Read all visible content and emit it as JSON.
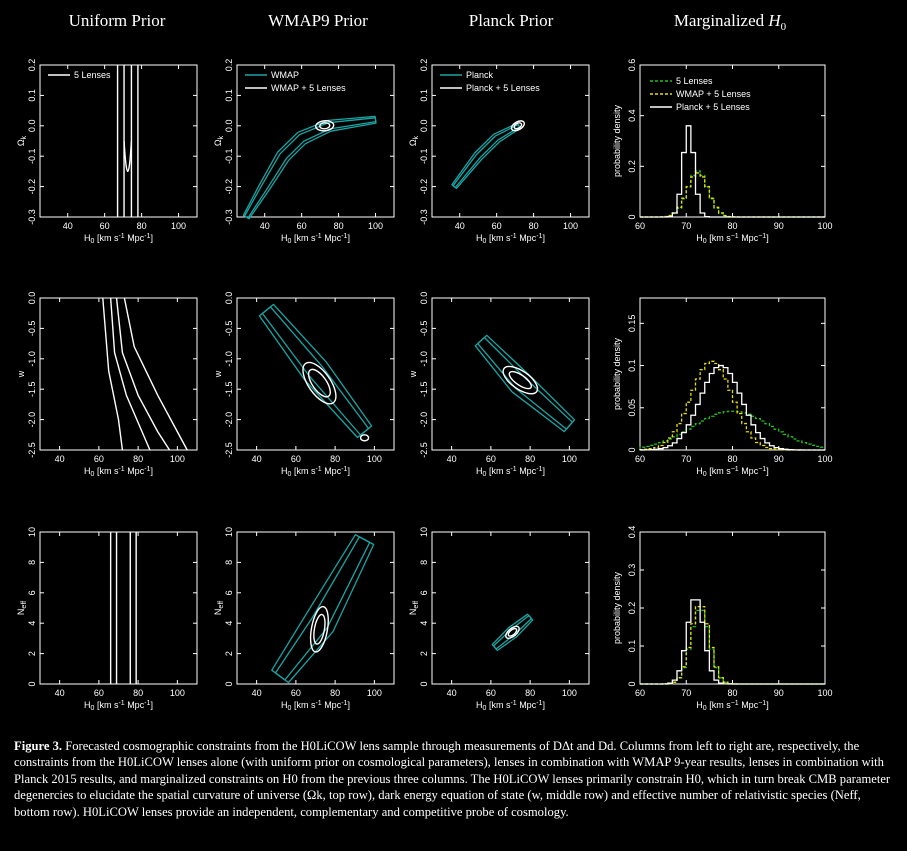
{
  "column_titles": [
    "Uniform Prior",
    "WMAP9 Prior",
    "Planck Prior",
    "Marginalized H0"
  ],
  "colors": {
    "background": "#000000",
    "lenses": "#ffffff",
    "cmb": "#1aa5a5",
    "green": "#22c022",
    "yellow": "#e8e000"
  },
  "caption": {
    "label": "Figure 3.",
    "text": "Forecasted cosmographic constraints from the H0LiCOW lens sample through measurements of DΔt and Dd. Columns from left to right are, respectively, the constraints from the H0LiCOW lenses alone (with uniform prior on cosmological parameters), lenses in combination with WMAP 9-year results, lenses in combination with Planck 2015 results, and marginalized constraints on H0 from the previous three columns. The H0LiCOW lenses primarily constrain H0, which in turn break CMB parameter degenercies to elucidate the spatial curvature of universe (Ωk, top row), dark energy equation of state (w, middle row) and effective number of relativistic species (Neff, bottom row). H0LiCOW lenses provide an independent, complementary and competitive probe of cosmology."
  },
  "chart_data": [
    {
      "type": "contour",
      "row": 1,
      "col": 1,
      "xlabel": "H0 [km s-1 Mpc-1]",
      "ylabel": "Ωk",
      "xlim": [
        25,
        110
      ],
      "ylim": [
        -0.3,
        0.2
      ],
      "xticks": [
        "40",
        "60",
        "80",
        "100"
      ],
      "yticks": [
        "-0.3",
        "-0.2",
        "-0.1",
        "0.0",
        "0.1",
        "0.2"
      ],
      "legend": [
        "5 Lenses"
      ],
      "series": [
        {
          "name": "5 Lenses",
          "H0_center": 72.5,
          "H0_68": [
            70.5,
            74.5
          ],
          "H0_95": [
            67,
            78
          ]
        }
      ]
    },
    {
      "type": "contour",
      "row": 1,
      "col": 2,
      "xlabel": "H0 [km s-1 Mpc-1]",
      "ylabel": "Ωk",
      "xlim": [
        25,
        110
      ],
      "ylim": [
        -0.3,
        0.2
      ],
      "xticks": [
        "40",
        "60",
        "80",
        "100"
      ],
      "yticks": [
        "-0.3",
        "-0.2",
        "-0.1",
        "0.0",
        "0.1",
        "0.2"
      ],
      "legend": [
        "WMAP",
        "WMAP + 5 Lenses"
      ],
      "series": [
        {
          "name": "WMAP",
          "degeneracy": [
            [
              30,
              -0.3
            ],
            [
              40,
              -0.2
            ],
            [
              50,
              -0.1
            ],
            [
              60,
              -0.04
            ],
            [
              75,
              0.0
            ],
            [
              100,
              0.02
            ]
          ]
        },
        {
          "name": "WMAP + 5 Lenses",
          "H0_center": 72.5,
          "Ok_center": 0.0
        }
      ]
    },
    {
      "type": "contour",
      "row": 1,
      "col": 3,
      "xlabel": "H0 [km s-1 Mpc-1]",
      "ylabel": "Ωk",
      "xlim": [
        25,
        110
      ],
      "ylim": [
        -0.3,
        0.2
      ],
      "xticks": [
        "40",
        "60",
        "80",
        "100"
      ],
      "yticks": [
        "-0.3",
        "-0.2",
        "-0.1",
        "0.0",
        "0.1",
        "0.2"
      ],
      "legend": [
        "Planck",
        "Planck + 5 Lenses"
      ],
      "series": [
        {
          "name": "Planck",
          "degeneracy": [
            [
              37,
              -0.2
            ],
            [
              50,
              -0.1
            ],
            [
              60,
              -0.04
            ],
            [
              72,
              0.0
            ]
          ]
        },
        {
          "name": "Planck + 5 Lenses",
          "H0_center": 71.5,
          "Ok_center": 0.0
        }
      ]
    },
    {
      "type": "histogram",
      "row": 1,
      "col": 4,
      "xlabel": "H0 [km s-1 Mpc-1]",
      "ylabel": "probability density",
      "xlim": [
        60,
        100
      ],
      "ylim": [
        0,
        0.6
      ],
      "xticks": [
        "60",
        "70",
        "80",
        "90",
        "100"
      ],
      "yticks": [
        "0",
        "0.2",
        "0.4",
        "0.6"
      ],
      "legend": [
        "5 Lenses",
        "WMAP + 5 Lenses",
        "Planck + 5 Lenses"
      ],
      "series": [
        {
          "name": "5 Lenses",
          "color": "green",
          "mean": 72.5,
          "sigma": 2.2
        },
        {
          "name": "WMAP + 5 Lenses",
          "color": "yellow",
          "mean": 72.5,
          "sigma": 2.3
        },
        {
          "name": "Planck + 5 Lenses",
          "color": "white",
          "mean": 70.5,
          "sigma": 1.2,
          "peak": 0.36
        }
      ]
    },
    {
      "type": "contour",
      "row": 2,
      "col": 1,
      "xlabel": "H0 [km s-1 Mpc-1]",
      "ylabel": "w",
      "xlim": [
        30,
        110
      ],
      "ylim": [
        -2.5,
        0.0
      ],
      "xticks": [
        "40",
        "60",
        "80",
        "100"
      ],
      "yticks": [
        "-2.5",
        "-2.0",
        "-1.5",
        "-1.0",
        "-0.5",
        "0.0"
      ],
      "series": [
        {
          "name": "5 Lenses",
          "degeneracy": [
            [
              66,
              0.0
            ],
            [
              70,
              -1.0
            ],
            [
              80,
              -1.8
            ],
            [
              95,
              -2.5
            ]
          ]
        }
      ]
    },
    {
      "type": "contour",
      "row": 2,
      "col": 2,
      "xlabel": "H0 [km s-1 Mpc-1]",
      "ylabel": "w",
      "xlim": [
        30,
        110
      ],
      "ylim": [
        -2.5,
        0.0
      ],
      "xticks": [
        "40",
        "60",
        "80",
        "100"
      ],
      "yticks": [
        "-2.5",
        "-2.0",
        "-1.5",
        "-1.0",
        "-0.5",
        "0.0"
      ],
      "series": [
        {
          "name": "WMAP",
          "degeneracy": [
            [
              45,
              -0.2
            ],
            [
              70,
              -1.2
            ],
            [
              95,
              -2.2
            ]
          ]
        },
        {
          "name": "WMAP + 5 Lenses",
          "H0_center": 73,
          "w_center": -1.3
        }
      ]
    },
    {
      "type": "contour",
      "row": 2,
      "col": 3,
      "xlabel": "H0 [km s-1 Mpc-1]",
      "ylabel": "w",
      "xlim": [
        30,
        110
      ],
      "ylim": [
        -2.5,
        0.0
      ],
      "xticks": [
        "40",
        "60",
        "80",
        "100"
      ],
      "yticks": [
        "-2.5",
        "-2.0",
        "-1.5",
        "-1.0",
        "-0.5",
        "0.0"
      ],
      "series": [
        {
          "name": "Planck",
          "degeneracy": [
            [
              55,
              -0.7
            ],
            [
              75,
              -1.4
            ],
            [
              100,
              -2.1
            ]
          ]
        },
        {
          "name": "Planck + 5 Lenses",
          "H0_center": 75,
          "w_center": -1.3
        }
      ]
    },
    {
      "type": "histogram",
      "row": 2,
      "col": 4,
      "xlabel": "H0 [km s-1 Mpc-1]",
      "ylabel": "probability density",
      "xlim": [
        60,
        100
      ],
      "ylim": [
        0,
        0.18
      ],
      "xticks": [
        "60",
        "70",
        "80",
        "90",
        "100"
      ],
      "yticks": [
        "0",
        "0.05",
        "0.1",
        "0.15"
      ],
      "series": [
        {
          "name": "5 Lenses",
          "color": "green",
          "mean": 80,
          "sigma": 8.5,
          "peak": 0.046
        },
        {
          "name": "WMAP + 5 Lenses",
          "color": "yellow",
          "mean": 75.5,
          "sigma": 4.5,
          "peak": 0.105
        },
        {
          "name": "Planck + 5 Lenses",
          "color": "white",
          "mean": 77.5,
          "sigma": 4.5,
          "peak": 0.1
        }
      ]
    },
    {
      "type": "contour",
      "row": 3,
      "col": 1,
      "xlabel": "H0 [km s-1 Mpc-1]",
      "ylabel": "Neff",
      "xlim": [
        30,
        110
      ],
      "ylim": [
        0,
        10
      ],
      "xticks": [
        "40",
        "60",
        "80",
        "100"
      ],
      "yticks": [
        "0",
        "2",
        "4",
        "6",
        "8",
        "10"
      ],
      "series": [
        {
          "name": "5 Lenses",
          "H0_68": [
            69,
            76
          ],
          "H0_95": [
            66,
            79
          ]
        }
      ]
    },
    {
      "type": "contour",
      "row": 3,
      "col": 2,
      "xlabel": "H0 [km s-1 Mpc-1]",
      "ylabel": "Neff",
      "xlim": [
        30,
        110
      ],
      "ylim": [
        0,
        10
      ],
      "xticks": [
        "40",
        "60",
        "80",
        "100"
      ],
      "yticks": [
        "0",
        "2",
        "4",
        "6",
        "8",
        "10"
      ],
      "series": [
        {
          "name": "WMAP",
          "degeneracy": [
            [
              52,
              0.5
            ],
            [
              72,
              4.0
            ],
            [
              95,
              9.5
            ]
          ]
        },
        {
          "name": "WMAP + 5 Lenses",
          "H0_center": 72,
          "Neff_center": 3.5
        }
      ]
    },
    {
      "type": "contour",
      "row": 3,
      "col": 3,
      "xlabel": "H0 [km s-1 Mpc-1]",
      "ylabel": "Neff",
      "xlim": [
        30,
        110
      ],
      "ylim": [
        0,
        10
      ],
      "xticks": [
        "40",
        "60",
        "80",
        "100"
      ],
      "yticks": [
        "0",
        "2",
        "4",
        "6",
        "8",
        "10"
      ],
      "series": [
        {
          "name": "Planck",
          "degeneracy": [
            [
              62,
              2.4
            ],
            [
              71,
              3.4
            ],
            [
              80,
              4.4
            ]
          ]
        },
        {
          "name": "Planck + 5 Lenses",
          "H0_center": 71,
          "Neff_center": 3.4
        }
      ]
    },
    {
      "type": "histogram",
      "row": 3,
      "col": 4,
      "xlabel": "H0 [km s-1 Mpc-1]",
      "ylabel": "probability density",
      "xlim": [
        60,
        100
      ],
      "ylim": [
        0,
        0.4
      ],
      "xticks": [
        "60",
        "70",
        "80",
        "90",
        "100"
      ],
      "yticks": [
        "0",
        "0.1",
        "0.2",
        "0.3",
        "0.4"
      ],
      "series": [
        {
          "name": "5 Lenses",
          "color": "green",
          "mean": 73,
          "sigma": 2.0,
          "peak": 0.2
        },
        {
          "name": "WMAP + 5 Lenses",
          "color": "yellow",
          "mean": 73,
          "sigma": 2.0,
          "peak": 0.21
        },
        {
          "name": "Planck + 5 Lenses",
          "color": "white",
          "mean": 72,
          "sigma": 1.8,
          "peak": 0.23
        }
      ]
    }
  ]
}
